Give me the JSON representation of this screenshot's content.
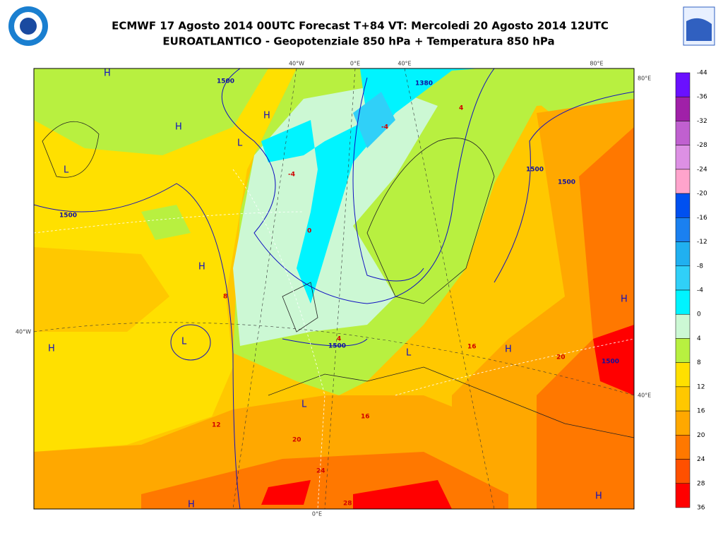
{
  "header": {
    "title_line1": "ECMWF 17 Agosto 2014 00UTC Forecast T+84 VT: Mercoledi 20 Agosto 2014 12UTC",
    "title_line2": "EUROATLANTICO - Geopotenziale 850 hPa + Temperatura 850 hPa"
  },
  "map": {
    "grid_labels": [
      "40°W",
      "0°E",
      "40°E",
      "80°E",
      "80°E",
      "40°W",
      "40°E",
      "0°E"
    ],
    "pressure_symbols": [
      "H",
      "H",
      "H",
      "L",
      "L",
      "L",
      "H",
      "L",
      "H",
      "H",
      "L",
      "H",
      "H",
      "H"
    ],
    "contour_labels": [
      "1500",
      "1500",
      "1380",
      "1500",
      "1500",
      "1500",
      "1500"
    ],
    "temperature_labels": [
      "4",
      "-4",
      "-4",
      "0",
      "4",
      "8",
      "12",
      "16",
      "20",
      "24",
      "16",
      "20",
      "28"
    ]
  },
  "colorbar": {
    "labels": [
      -44,
      -36,
      -32,
      -28,
      -24,
      -20,
      -16,
      -12,
      -8,
      -4,
      0,
      4,
      8,
      12,
      16,
      20,
      24,
      28,
      36
    ],
    "colors": [
      "#6a10ff",
      "#a020a8",
      "#c060d0",
      "#dd90e4",
      "#ffa4cc",
      "#0050f0",
      "#1a80f0",
      "#20b0f0",
      "#30d0f8",
      "#00f4ff",
      "#ccf8d4",
      "#b8f040",
      "#ffe000",
      "#ffc800",
      "#ffa800",
      "#ff7800",
      "#ff5000",
      "#ff0000"
    ]
  }
}
